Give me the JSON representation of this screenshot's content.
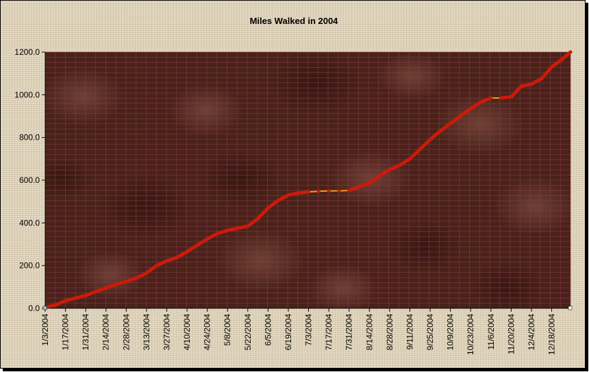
{
  "chart_data": {
    "type": "line",
    "title": "Miles Walked in 2004",
    "xlabel": "",
    "ylabel": "",
    "ylim": [
      0,
      1200
    ],
    "yticks": [
      "0.0",
      "200.0",
      "400.0",
      "600.0",
      "800.0",
      "1000.0",
      "1200.0"
    ],
    "xlim": [
      "1/3/2004",
      "12/31/2004"
    ],
    "xticks": [
      "1/3/2004",
      "1/17/2004",
      "1/31/2004",
      "2/14/2004",
      "2/28/2004",
      "3/13/2004",
      "3/27/2004",
      "4/10/2004",
      "4/24/2004",
      "5/8/2004",
      "5/22/2004",
      "6/5/2004",
      "6/19/2004",
      "7/3/2004",
      "7/17/2004",
      "7/31/2004",
      "8/14/2004",
      "8/28/2004",
      "9/11/2004",
      "9/25/2004",
      "10/9/2004",
      "10/23/2004",
      "11/6/2004",
      "11/20/2004",
      "12/4/2004",
      "12/18/2004"
    ],
    "grid": true,
    "legend": "none",
    "colors": {
      "line": "#cc1a0a",
      "flat_segment": "#f0a020",
      "plot_bg": "#4a2218",
      "grid": "#8a3a55"
    },
    "series": [
      {
        "x": [
          "1/3/2004",
          "1/10/2004",
          "1/17/2004",
          "1/24/2004",
          "1/31/2004",
          "2/7/2004",
          "2/14/2004",
          "2/21/2004",
          "2/28/2004",
          "3/6/2004",
          "3/13/2004",
          "3/20/2004",
          "3/27/2004",
          "4/3/2004",
          "4/10/2004",
          "4/17/2004",
          "4/24/2004",
          "5/1/2004",
          "5/8/2004",
          "5/15/2004",
          "5/22/2004",
          "5/29/2004",
          "6/5/2004",
          "6/12/2004",
          "6/19/2004",
          "6/26/2004",
          "7/3/2004",
          "7/10/2004",
          "7/17/2004",
          "7/24/2004",
          "7/31/2004",
          "8/7/2004",
          "8/14/2004",
          "8/21/2004",
          "8/28/2004",
          "9/4/2004",
          "9/11/2004",
          "9/18/2004",
          "9/25/2004",
          "10/2/2004",
          "10/9/2004",
          "10/16/2004",
          "10/23/2004",
          "10/30/2004",
          "11/6/2004",
          "11/13/2004",
          "11/20/2004",
          "11/27/2004",
          "12/4/2004",
          "12/11/2004",
          "12/18/2004",
          "12/25/2004",
          "12/31/2004"
        ],
        "y": [
          5,
          15,
          35,
          48,
          60,
          78,
          95,
          112,
          125,
          142,
          165,
          200,
          222,
          238,
          265,
          295,
          325,
          350,
          365,
          375,
          385,
          420,
          470,
          505,
          530,
          540,
          545,
          548,
          550,
          550,
          552,
          570,
          585,
          620,
          650,
          670,
          700,
          745,
          790,
          830,
          865,
          900,
          935,
          965,
          985,
          985,
          990,
          1040,
          1050,
          1075,
          1130,
          1165,
          1200
        ]
      }
    ]
  }
}
